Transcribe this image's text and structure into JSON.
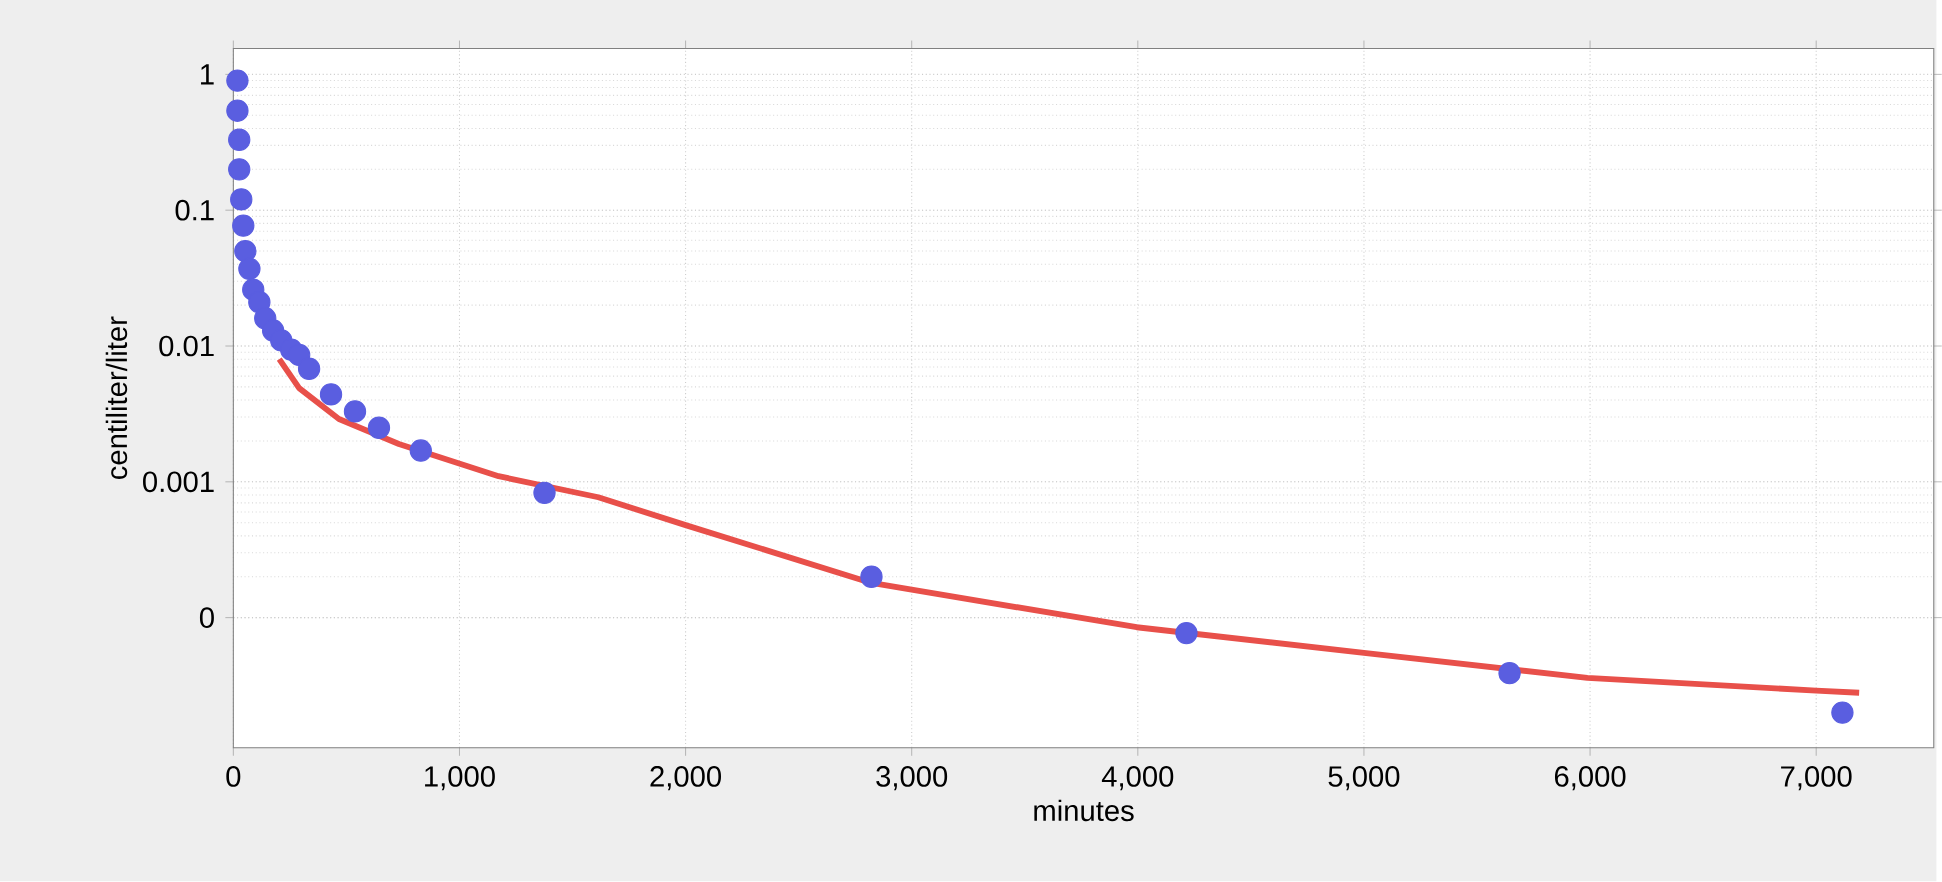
{
  "chart_data": {
    "type": "scatter",
    "xlabel": "minutes",
    "ylabel": "centiliter/liter",
    "log": "y",
    "grid": true,
    "marker": "circle",
    "xlim": [
      0,
      7520
    ],
    "ylim": [
      1.1e-05,
      1.55
    ],
    "xticks": [
      0,
      {
        "value": 1000,
        "label": "1,000"
      },
      {
        "value": 2000,
        "label": "2,000"
      },
      {
        "value": 3000,
        "label": "3,000"
      },
      {
        "value": 4000,
        "label": "4,000"
      },
      {
        "value": 5000,
        "label": "5,000"
      },
      {
        "value": 6000,
        "label": "6,000"
      },
      {
        "value": 7000,
        "label": "7,000"
      }
    ],
    "yticks": [
      {
        "value": 0.0001,
        "label": "0"
      },
      0.001,
      0.01,
      0.1,
      1
    ],
    "series": [
      {
        "type": "line",
        "color": "#e8504a",
        "marker": "none",
        "x": [
          203,
          291,
          467,
          732,
          1173,
          1614,
          2000,
          2822,
          3995,
          5000,
          5988,
          7000,
          7190
        ],
        "values": [
          0.008,
          0.0049,
          0.0029,
          0.0019,
          0.0011,
          0.00077,
          0.00048,
          0.00018,
          8.5e-05,
          5.5e-05,
          3.6e-05,
          2.9e-05,
          2.8e-05
        ]
      },
      {
        "color": "#5a5ee0",
        "x": [
          18,
          18,
          26,
          26,
          35,
          44,
          53,
          71,
          88,
          115,
          141,
          176,
          212,
          256,
          291,
          335,
          432,
          538,
          644,
          829,
          1376,
          2822,
          4215,
          5644,
          7116
        ],
        "values": [
          0.9,
          0.54,
          0.33,
          0.2,
          0.12,
          0.077,
          0.05,
          0.037,
          0.026,
          0.021,
          0.016,
          0.013,
          0.011,
          0.0094,
          0.0086,
          0.0068,
          0.0044,
          0.0033,
          0.0025,
          0.0017,
          0.00083,
          0.0002,
          7.7e-05,
          3.9e-05,
          2e-05
        ]
      }
    ]
  }
}
